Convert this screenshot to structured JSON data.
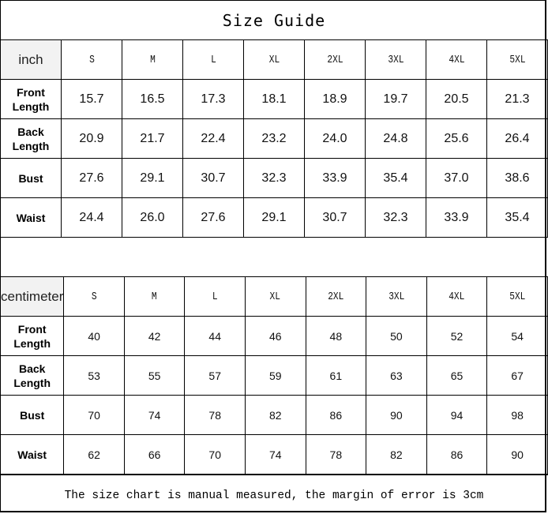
{
  "title": "Size Guide",
  "sizes": [
    "S",
    "M",
    "L",
    "XL",
    "2XL",
    "3XL",
    "4XL",
    "5XL"
  ],
  "inch_table": {
    "unit": "inch",
    "rows": [
      {
        "label": "Front Length",
        "values": [
          "15.7",
          "16.5",
          "17.3",
          "18.1",
          "18.9",
          "19.7",
          "20.5",
          "21.3"
        ]
      },
      {
        "label": "Back Length",
        "values": [
          "20.9",
          "21.7",
          "22.4",
          "23.2",
          "24.0",
          "24.8",
          "25.6",
          "26.4"
        ]
      },
      {
        "label": "Bust",
        "values": [
          "27.6",
          "29.1",
          "30.7",
          "32.3",
          "33.9",
          "35.4",
          "37.0",
          "38.6"
        ]
      },
      {
        "label": "Waist",
        "values": [
          "24.4",
          "26.0",
          "27.6",
          "29.1",
          "30.7",
          "32.3",
          "33.9",
          "35.4"
        ]
      }
    ]
  },
  "cm_table": {
    "unit": "centimeter",
    "rows": [
      {
        "label": "Front Length",
        "values": [
          "40",
          "42",
          "44",
          "46",
          "48",
          "50",
          "52",
          "54"
        ]
      },
      {
        "label": "Back Length",
        "values": [
          "53",
          "55",
          "57",
          "59",
          "61",
          "63",
          "65",
          "67"
        ]
      },
      {
        "label": "Bust",
        "values": [
          "70",
          "74",
          "78",
          "82",
          "86",
          "90",
          "94",
          "98"
        ]
      },
      {
        "label": "Waist",
        "values": [
          "62",
          "66",
          "70",
          "74",
          "78",
          "82",
          "86",
          "90"
        ]
      }
    ]
  },
  "footer_note": "The size chart is manual measured, the margin of error is 3cm",
  "colors": {
    "unit_cell_bg": "#f2f2f2",
    "border": "#000000"
  }
}
